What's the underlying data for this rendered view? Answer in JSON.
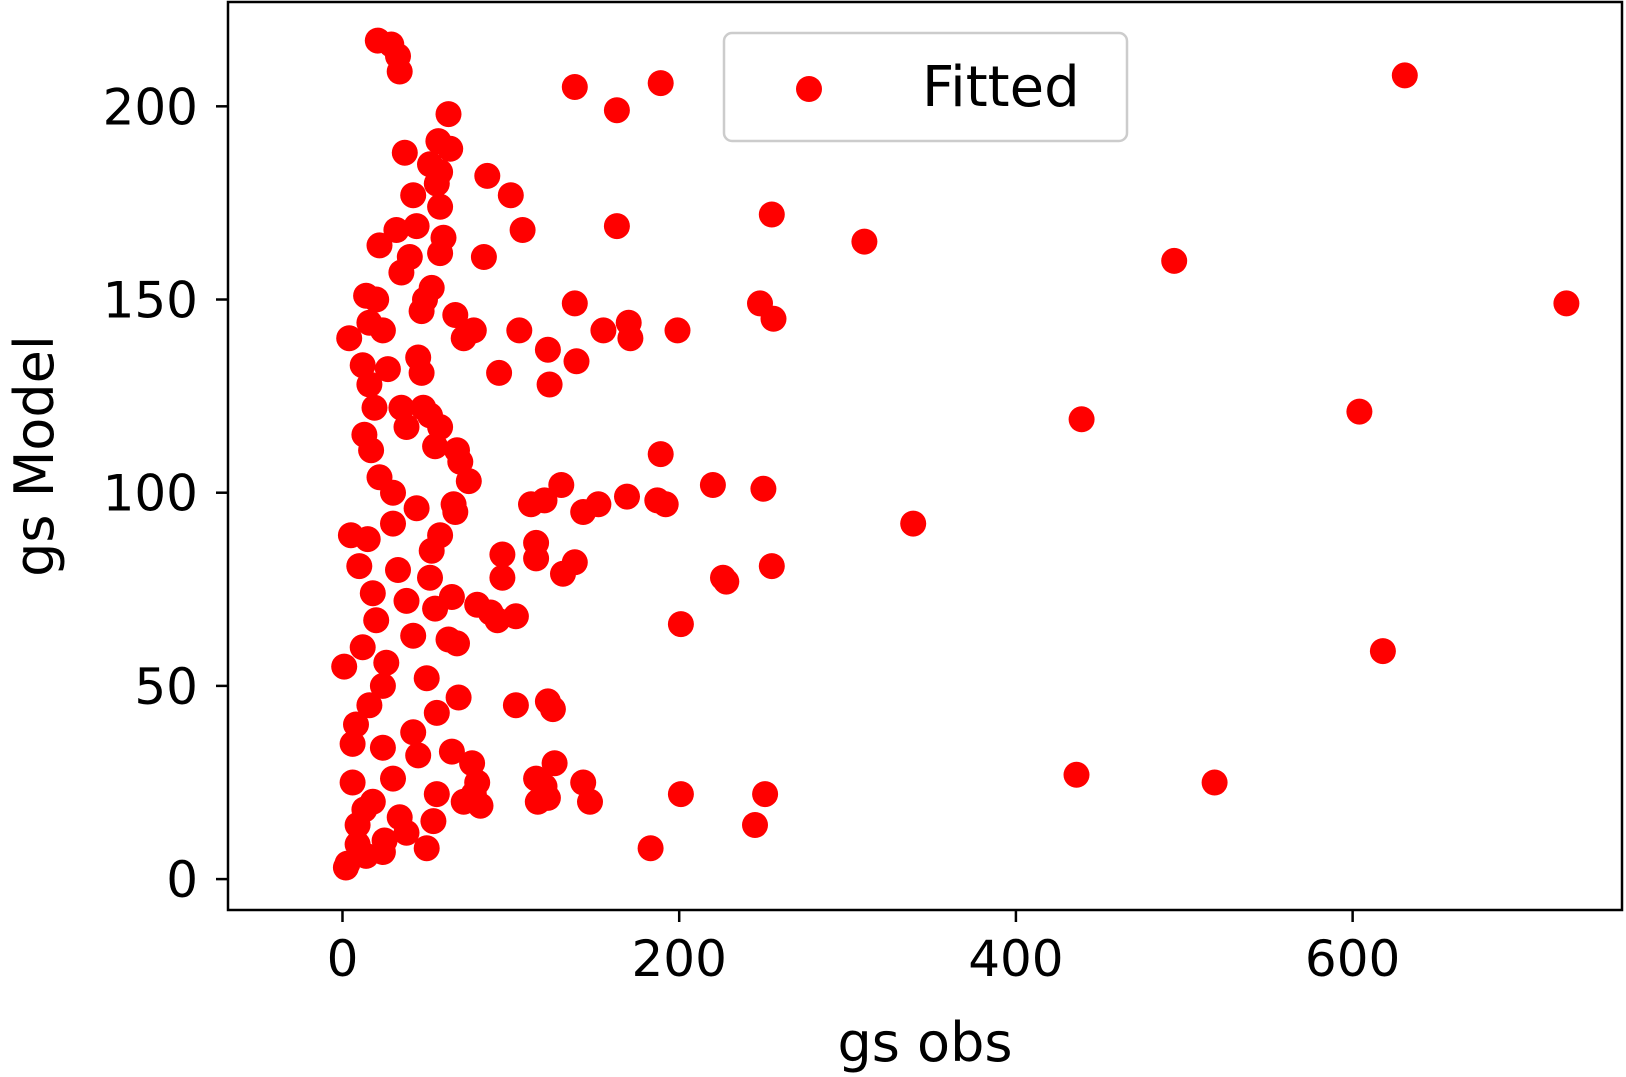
{
  "chart_data": {
    "type": "scatter",
    "title": "",
    "xlabel": "gs obs",
    "ylabel": "gs Model",
    "xlim": [
      -68,
      760
    ],
    "ylim": [
      -8,
      227
    ],
    "xticks": [
      0,
      200,
      400,
      600
    ],
    "yticks": [
      0,
      50,
      100,
      150,
      200
    ],
    "grid": false,
    "legend": {
      "position": "top-center",
      "entries": [
        "Fitted"
      ]
    },
    "series": [
      {
        "name": "Fitted",
        "color": "#ff0000",
        "marker": "circle",
        "points": [
          [
            21,
            217
          ],
          [
            29,
            216
          ],
          [
            33,
            213
          ],
          [
            34,
            209
          ],
          [
            138,
            205
          ],
          [
            189,
            206
          ],
          [
            163,
            199
          ],
          [
            631,
            208
          ],
          [
            63,
            198
          ],
          [
            37,
            188
          ],
          [
            57,
            191
          ],
          [
            64,
            189
          ],
          [
            52,
            185
          ],
          [
            58,
            183
          ],
          [
            86,
            182
          ],
          [
            100,
            177
          ],
          [
            42,
            177
          ],
          [
            56,
            180
          ],
          [
            58,
            174
          ],
          [
            255,
            172
          ],
          [
            107,
            168
          ],
          [
            163,
            169
          ],
          [
            32,
            168
          ],
          [
            44,
            169
          ],
          [
            60,
            166
          ],
          [
            310,
            165
          ],
          [
            22,
            164
          ],
          [
            58,
            162
          ],
          [
            84,
            161
          ],
          [
            494,
            160
          ],
          [
            40,
            161
          ],
          [
            35,
            157
          ],
          [
            53,
            153
          ],
          [
            138,
            149
          ],
          [
            49,
            150
          ],
          [
            47,
            147
          ],
          [
            14,
            151
          ],
          [
            20,
            150
          ],
          [
            248,
            149
          ],
          [
            256,
            145
          ],
          [
            727,
            149
          ],
          [
            67,
            146
          ],
          [
            72,
            140
          ],
          [
            78,
            142
          ],
          [
            105,
            142
          ],
          [
            155,
            142
          ],
          [
            170,
            144
          ],
          [
            171,
            140
          ],
          [
            199,
            142
          ],
          [
            4,
            140
          ],
          [
            16,
            144
          ],
          [
            24,
            142
          ],
          [
            12,
            133
          ],
          [
            27,
            132
          ],
          [
            122,
            137
          ],
          [
            139,
            134
          ],
          [
            45,
            135
          ],
          [
            47,
            131
          ],
          [
            16,
            128
          ],
          [
            93,
            131
          ],
          [
            123,
            128
          ],
          [
            19,
            122
          ],
          [
            35,
            122
          ],
          [
            48,
            122
          ],
          [
            52,
            120
          ],
          [
            604,
            121
          ],
          [
            439,
            119
          ],
          [
            58,
            117
          ],
          [
            38,
            117
          ],
          [
            13,
            115
          ],
          [
            17,
            111
          ],
          [
            55,
            112
          ],
          [
            68,
            111
          ],
          [
            70,
            108
          ],
          [
            189,
            110
          ],
          [
            75,
            103
          ],
          [
            22,
            104
          ],
          [
            30,
            100
          ],
          [
            130,
            102
          ],
          [
            220,
            102
          ],
          [
            250,
            101
          ],
          [
            112,
            97
          ],
          [
            120,
            98
          ],
          [
            143,
            95
          ],
          [
            152,
            97
          ],
          [
            169,
            99
          ],
          [
            187,
            98
          ],
          [
            192,
            97
          ],
          [
            339,
            92
          ],
          [
            44,
            96
          ],
          [
            66,
            97
          ],
          [
            67,
            95
          ],
          [
            30,
            92
          ],
          [
            5,
            89
          ],
          [
            15,
            88
          ],
          [
            58,
            89
          ],
          [
            53,
            85
          ],
          [
            95,
            84
          ],
          [
            115,
            87
          ],
          [
            115,
            83
          ],
          [
            138,
            82
          ],
          [
            131,
            79
          ],
          [
            226,
            78
          ],
          [
            228,
            77
          ],
          [
            255,
            81
          ],
          [
            10,
            81
          ],
          [
            33,
            80
          ],
          [
            52,
            78
          ],
          [
            95,
            78
          ],
          [
            18,
            74
          ],
          [
            38,
            72
          ],
          [
            65,
            73
          ],
          [
            80,
            71
          ],
          [
            88,
            69
          ],
          [
            92,
            67
          ],
          [
            103,
            68
          ],
          [
            201,
            66
          ],
          [
            20,
            67
          ],
          [
            55,
            70
          ],
          [
            42,
            63
          ],
          [
            63,
            62
          ],
          [
            68,
            61
          ],
          [
            12,
            60
          ],
          [
            26,
            56
          ],
          [
            1,
            55
          ],
          [
            50,
            52
          ],
          [
            24,
            50
          ],
          [
            69,
            47
          ],
          [
            103,
            45
          ],
          [
            122,
            46
          ],
          [
            125,
            44
          ],
          [
            618,
            59
          ],
          [
            16,
            45
          ],
          [
            56,
            43
          ],
          [
            8,
            40
          ],
          [
            42,
            38
          ],
          [
            65,
            33
          ],
          [
            77,
            30
          ],
          [
            6,
            35
          ],
          [
            24,
            34
          ],
          [
            45,
            32
          ],
          [
            126,
            30
          ],
          [
            30,
            26
          ],
          [
            80,
            25
          ],
          [
            115,
            26
          ],
          [
            120,
            24
          ],
          [
            143,
            25
          ],
          [
            436,
            27
          ],
          [
            518,
            25
          ],
          [
            6,
            25
          ],
          [
            18,
            20
          ],
          [
            56,
            22
          ],
          [
            72,
            20
          ],
          [
            78,
            22
          ],
          [
            116,
            20
          ],
          [
            122,
            21
          ],
          [
            147,
            20
          ],
          [
            201,
            22
          ],
          [
            251,
            22
          ],
          [
            13,
            18
          ],
          [
            82,
            19
          ],
          [
            34,
            16
          ],
          [
            54,
            15
          ],
          [
            245,
            14
          ],
          [
            9,
            14
          ],
          [
            25,
            10
          ],
          [
            50,
            8
          ],
          [
            183,
            8
          ],
          [
            14,
            6
          ],
          [
            24,
            7
          ],
          [
            3,
            4
          ],
          [
            2,
            3
          ],
          [
            9,
            9
          ],
          [
            38,
            12
          ]
        ]
      }
    ]
  }
}
